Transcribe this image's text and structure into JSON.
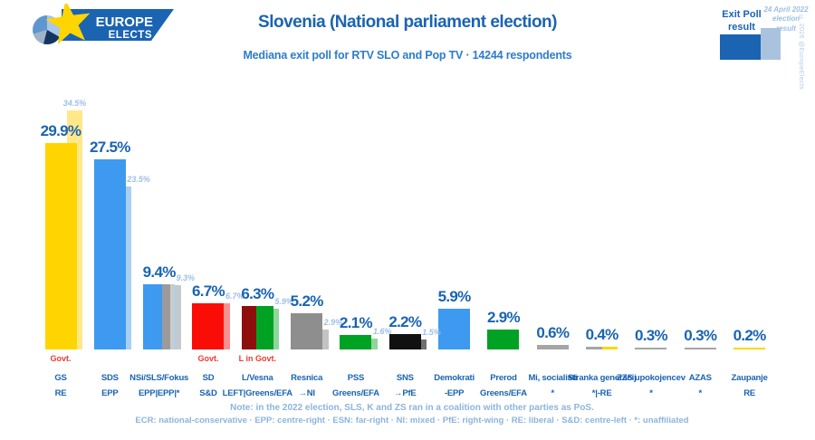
{
  "header": {
    "logo": {
      "line1": "EUROPE",
      "line2": "ELECTS"
    },
    "title": "Slovenia (National parliament election)",
    "subtitle": "Mediana exit poll for RTV SLO and Pop TV · 14244 respondents",
    "legend": {
      "exit_label": "Exit Poll result",
      "result_label": "24 April 2022 election result"
    },
    "copyright": "© 2026 @EuropeElects"
  },
  "footer": {
    "note": "Note: in the 2022 election, SLS, K and ZS ran in a coalition with other parties as PoS.",
    "legend_line": "ECR: national-conservative · EPP: centre-right · ESN: far-right · NI: mixed · PfE: right-wing · RE: liberal · S&D: centre-left · *: unaffiliated"
  },
  "chart_data": {
    "type": "bar",
    "title": "Slovenia (National parliament election)",
    "subtitle": "Mediana exit poll for RTV SLO and Pop TV · 14244 respondents",
    "unit": "%",
    "ylim": [
      0,
      36
    ],
    "grid": false,
    "legend_position": "top-right",
    "series": [
      "Exit poll",
      "24 April 2022 election result"
    ],
    "categories": [
      "GS",
      "SDS",
      "NSi/SLS/Fokus",
      "SD",
      "L/Vesna",
      "Resnica",
      "PSS",
      "SNS",
      "Demokrati",
      "Prerod",
      "Mi, socialisti",
      "Stranka generacij",
      "ZZS upokojencev",
      "AZAS",
      "Zaupanje"
    ],
    "parties": [
      {
        "name": "GS",
        "group": "RE",
        "govt": "Govt.",
        "exit": 29.9,
        "result": 34.5,
        "exit_segments": [
          [
            "#FFD500",
            1
          ]
        ],
        "result_segments": [
          [
            "#FFE88A",
            1
          ]
        ]
      },
      {
        "name": "SDS",
        "group": "EPP",
        "govt": null,
        "exit": 27.5,
        "result": 23.5,
        "exit_segments": [
          [
            "#3D9AF0",
            1
          ]
        ],
        "result_segments": [
          [
            "#A8CFF5",
            1
          ]
        ]
      },
      {
        "name": "NSi/SLS/Fokus",
        "group": "EPP|EPP|*",
        "govt": null,
        "exit": 9.4,
        "result": 9.3,
        "exit_segments": [
          [
            "#3D9AF0",
            0.6
          ],
          [
            "#9B9B9B",
            0.25
          ],
          [
            "#CBCBCB",
            0.15
          ]
        ],
        "result_segments": [
          [
            "#A8CFF5",
            0.73
          ],
          [
            "#C9C9C9",
            0.27
          ]
        ]
      },
      {
        "name": "SD",
        "group": "S&D",
        "govt": "Govt.",
        "exit": 6.7,
        "result": 6.7,
        "exit_segments": [
          [
            "#FB0D07",
            1
          ]
        ],
        "result_segments": [
          [
            "#F89090",
            1
          ]
        ]
      },
      {
        "name": "L/Vesna",
        "group": "LEFT|Greens/EFA",
        "govt": "L in Govt.",
        "exit": 6.3,
        "result": 5.9,
        "exit_segments": [
          [
            "#8E0E0E",
            0.46
          ],
          [
            "#00A223",
            0.54
          ]
        ],
        "result_segments": [
          [
            "#8FD69B",
            1
          ]
        ]
      },
      {
        "name": "Resnica",
        "group": "→NI",
        "govt": null,
        "exit": 5.2,
        "result": 2.9,
        "exit_segments": [
          [
            "#8E8E8E",
            1
          ]
        ],
        "result_segments": [
          [
            "#C3C3C3",
            1
          ]
        ]
      },
      {
        "name": "PSS",
        "group": "Greens/EFA",
        "govt": null,
        "exit": 2.1,
        "result": 1.6,
        "exit_segments": [
          [
            "#00A223",
            1
          ]
        ],
        "result_segments": [
          [
            "#8FD69B",
            1
          ]
        ]
      },
      {
        "name": "SNS",
        "group": "→PfE",
        "govt": null,
        "exit": 2.2,
        "result": 1.5,
        "exit_segments": [
          [
            "#111111",
            1
          ]
        ],
        "result_segments": [
          [
            "#6F6F6F",
            1
          ]
        ]
      },
      {
        "name": "Demokrati",
        "group": "-EPP",
        "govt": null,
        "exit": 5.9,
        "result": null,
        "exit_segments": [
          [
            "#3D9AF0",
            1
          ]
        ],
        "result_segments": null
      },
      {
        "name": "Prerod",
        "group": "Greens/EFA",
        "govt": null,
        "exit": 2.9,
        "result": null,
        "exit_segments": [
          [
            "#00A223",
            1
          ]
        ],
        "result_segments": null
      },
      {
        "name": "Mi, socialisti",
        "group": "*",
        "govt": null,
        "exit": 0.6,
        "result": null,
        "exit_segments": [
          [
            "#A5A5A5",
            1
          ]
        ],
        "result_segments": null
      },
      {
        "name": "Stranka generacij",
        "group": "*|-RE",
        "govt": null,
        "exit": 0.4,
        "result": null,
        "exit_segments": [
          [
            "#A5A5A5",
            0.5
          ],
          [
            "#FFD500",
            0.5
          ]
        ],
        "result_segments": null
      },
      {
        "name": "ZZS upokojencev",
        "group": "*",
        "govt": null,
        "exit": 0.3,
        "result": null,
        "exit_segments": [
          [
            "#A5A5A5",
            1
          ]
        ],
        "result_segments": null
      },
      {
        "name": "AZAS",
        "group": "*",
        "govt": null,
        "exit": 0.3,
        "result": null,
        "exit_segments": [
          [
            "#A5A5A5",
            1
          ]
        ],
        "result_segments": null
      },
      {
        "name": "Zaupanje",
        "group": "RE",
        "govt": null,
        "exit": 0.2,
        "result": null,
        "exit_segments": [
          [
            "#FFD500",
            1
          ]
        ],
        "result_segments": null
      }
    ]
  }
}
